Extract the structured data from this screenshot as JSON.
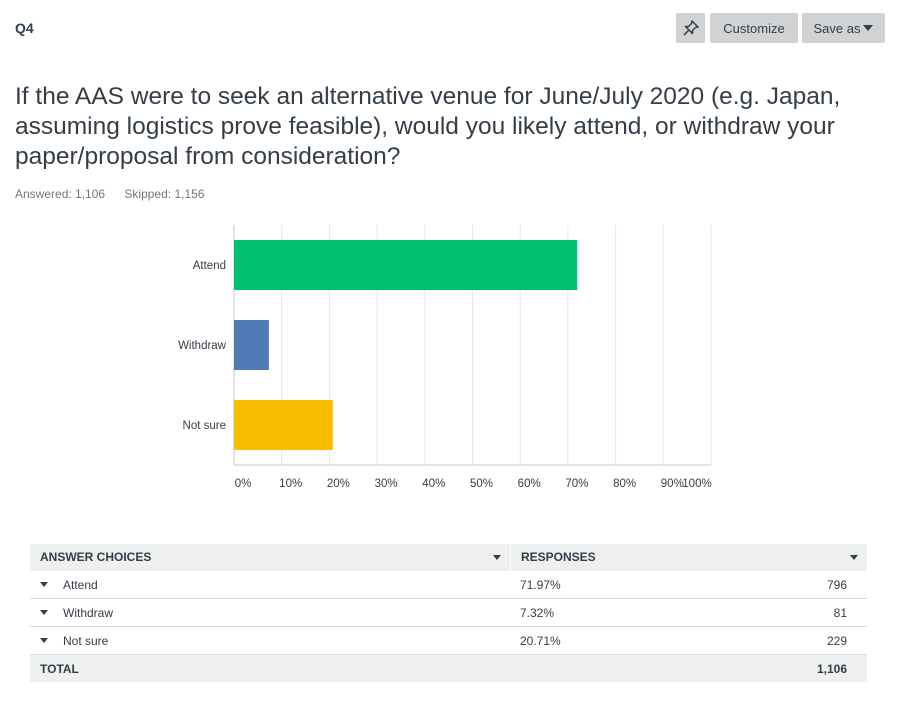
{
  "header": {
    "question_number": "Q4",
    "pin_icon": "pin-icon",
    "customize_label": "Customize",
    "save_as_label": "Save as"
  },
  "question": {
    "text": "If the AAS were to seek an alternative venue for June/July 2020 (e.g. Japan, assuming logistics prove feasible), would you likely attend, or withdraw your paper/proposal from consideration?",
    "answered": "Answered: 1,106",
    "skipped": "Skipped: 1,156"
  },
  "chart_data": {
    "type": "bar",
    "orientation": "horizontal",
    "categories": [
      "Attend",
      "Withdraw",
      "Not sure"
    ],
    "values": [
      71.97,
      7.32,
      20.71
    ],
    "colors": [
      "#00bf6f",
      "#507cb6",
      "#f9be00"
    ],
    "xlim": [
      0,
      100
    ],
    "xticks": [
      "0%",
      "10%",
      "20%",
      "30%",
      "40%",
      "50%",
      "60%",
      "70%",
      "80%",
      "90%",
      "100%"
    ],
    "grid": true
  },
  "table": {
    "headers": [
      "ANSWER CHOICES",
      "RESPONSES"
    ],
    "rows": [
      {
        "choice": "Attend",
        "percent": "71.97%",
        "count": "796"
      },
      {
        "choice": "Withdraw",
        "percent": "7.32%",
        "count": "81"
      },
      {
        "choice": "Not sure",
        "percent": "20.71%",
        "count": "229"
      }
    ],
    "total_label": "TOTAL",
    "total_count": "1,106"
  }
}
